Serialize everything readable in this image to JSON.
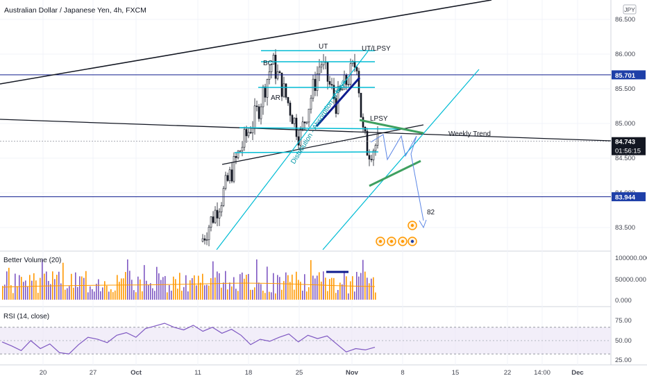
{
  "header": {
    "symbol_title": "Australian Dollar / Japanese Yen, 4h, FXCM",
    "currency_badge": "JPY"
  },
  "price_pane": {
    "y_ticks": [
      83.5,
      84.0,
      84.5,
      85.0,
      85.5,
      86.0,
      86.5
    ],
    "y_tick_labels": [
      "83.500",
      "84.000",
      "84.500",
      "85.000",
      "85.500",
      "86.000",
      "86.500"
    ],
    "ylim": [
      83.3,
      86.8
    ],
    "badges": [
      {
        "label": "85.701",
        "value": 85.701,
        "color": "#1e3fa8"
      },
      {
        "label": "84.743",
        "value": 84.743,
        "color": "#131722"
      },
      {
        "label": "83.944",
        "value": 83.944,
        "color": "#1e3fa8"
      }
    ],
    "countdown": "01:56:15",
    "annotations": {
      "ut": "UT",
      "ut_lpsy": "UT/LPSY",
      "bc": "BC",
      "ar": "AR",
      "lpsy": "LPSY",
      "weekly_trend": "Weekly Trend",
      "distribution": "Distribution - Absorption of buys",
      "target": "82"
    }
  },
  "volume_pane": {
    "title": "Better Volume (20)",
    "y_tick_labels": [
      "100000.000",
      "50000.000",
      "0.000"
    ]
  },
  "rsi_pane": {
    "title": "RSI (14, close)",
    "y_tick_labels": [
      "75.00",
      "50.00",
      "25.00"
    ]
  },
  "time_axis": {
    "labels": [
      "20",
      "27",
      "Oct",
      "11",
      "18",
      "25",
      "Nov",
      "8",
      "15",
      "22",
      "14:00",
      "Dec"
    ]
  },
  "colors": {
    "candle": "#131722",
    "cyan": "#00bcd4",
    "navy": "#0d1b8e",
    "green": "#3fa060",
    "volume_purple": "#7e57c2",
    "volume_orange": "#ff9800",
    "rsi_line": "#7e57c2"
  },
  "chart_data": [
    {
      "type": "candlestick",
      "title": "Australian Dollar / Japanese Yen, 4h, FXCM",
      "ylim": [
        83.3,
        86.8
      ],
      "horizontal_levels": [
        85.701,
        83.944
      ],
      "last_price": 84.743,
      "close_path": [
        {
          "x": "Oct 6",
          "y": 83.3
        },
        {
          "x": "Oct 10",
          "y": 83.9
        },
        {
          "x": "Oct 14",
          "y": 84.6
        },
        {
          "x": "Oct 18",
          "y": 85.2
        },
        {
          "x": "Oct 20",
          "y": 85.9
        },
        {
          "x": "Oct 22",
          "y": 85.3
        },
        {
          "x": "Oct 25",
          "y": 84.8
        },
        {
          "x": "Oct 28",
          "y": 85.9
        },
        {
          "x": "Oct 30",
          "y": 85.3
        },
        {
          "x": "Nov 1",
          "y": 85.9
        },
        {
          "x": "Nov 2",
          "y": 84.9
        },
        {
          "x": "Nov 3",
          "y": 84.6
        },
        {
          "x": "Nov 5",
          "y": 84.743
        }
      ]
    },
    {
      "type": "bar",
      "title": "Better Volume (20)",
      "ylim": [
        0,
        100000
      ]
    },
    {
      "type": "line",
      "title": "RSI (14, close)",
      "ylim": [
        25,
        75
      ],
      "values": [
        48,
        42,
        35,
        50,
        38,
        45,
        32,
        30,
        44,
        55,
        52,
        47,
        58,
        62,
        55,
        68,
        72,
        76,
        70,
        66,
        73,
        64,
        70,
        61,
        67,
        58,
        44,
        52,
        49,
        55,
        60,
        48,
        58,
        53,
        57,
        45,
        33,
        38,
        36,
        40
      ]
    }
  ]
}
